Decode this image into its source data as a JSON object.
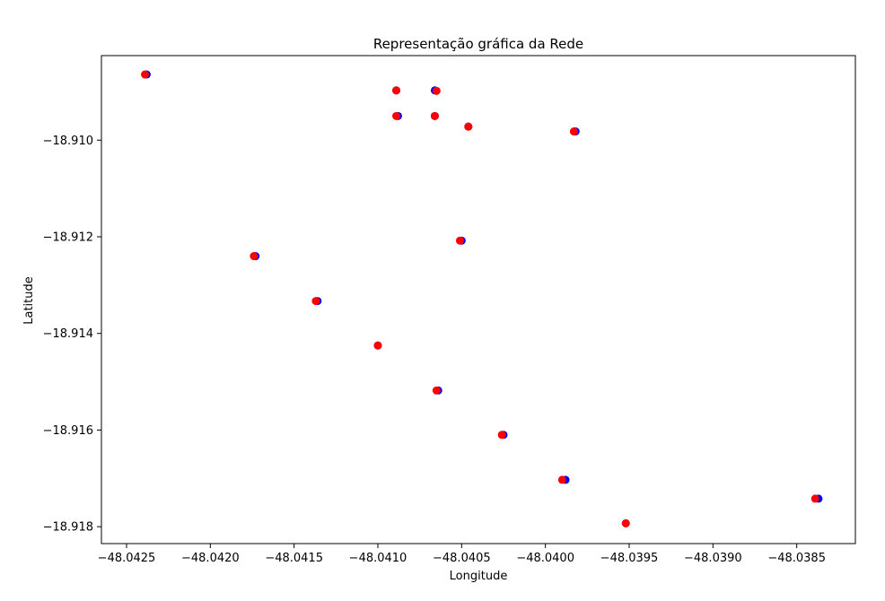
{
  "chart_data": {
    "type": "scatter",
    "title": "Representação gráfica da Rede",
    "xlabel": "Longitude",
    "ylabel": "Latitude",
    "xlim": [
      -48.04265,
      -48.03815
    ],
    "ylim": [
      -18.91835,
      -18.90825
    ],
    "xticks": [
      -48.0425,
      -48.042,
      -48.0415,
      -48.041,
      -48.0405,
      -48.04,
      -48.0395,
      -48.039,
      -48.0385
    ],
    "xtick_labels": [
      "−48.0425",
      "−48.0420",
      "−48.0415",
      "−48.0410",
      "−48.0405",
      "−48.0400",
      "−48.0395",
      "−48.0390",
      "−48.0385"
    ],
    "yticks": [
      -18.91,
      -18.912,
      -18.914,
      -18.916,
      -18.918
    ],
    "ytick_labels": [
      "−18.910",
      "−18.912",
      "−18.914",
      "−18.916",
      "−18.918"
    ],
    "grid": false,
    "series": [
      {
        "color": "#0000ff",
        "marker": "circle",
        "points": [
          [
            -48.04238,
            -18.90864
          ],
          [
            -48.04089,
            -18.90897
          ],
          [
            -48.04066,
            -18.90897
          ],
          [
            -48.04088,
            -18.9095
          ],
          [
            -48.04066,
            -18.9095
          ],
          [
            -48.04046,
            -18.90972
          ],
          [
            -48.03982,
            -18.90982
          ],
          [
            -48.0405,
            -18.91208
          ],
          [
            -48.04173,
            -18.9124
          ],
          [
            -48.04136,
            -18.91333
          ],
          [
            -48.041,
            -18.91425
          ],
          [
            -48.04064,
            -18.91518
          ],
          [
            -48.04025,
            -18.9161
          ],
          [
            -48.03988,
            -18.91703
          ],
          [
            -48.03952,
            -18.91793
          ],
          [
            -48.03837,
            -18.91742
          ]
        ]
      },
      {
        "color": "#ff0000",
        "marker": "circle",
        "points": [
          [
            -48.04239,
            -18.90864
          ],
          [
            -48.04089,
            -18.90897
          ],
          [
            -48.04065,
            -18.90898
          ],
          [
            -48.04089,
            -18.9095
          ],
          [
            -48.04066,
            -18.9095
          ],
          [
            -48.04046,
            -18.90972
          ],
          [
            -48.03983,
            -18.90982
          ],
          [
            -48.04051,
            -18.91208
          ],
          [
            -48.04174,
            -18.9124
          ],
          [
            -48.04137,
            -18.91333
          ],
          [
            -48.041,
            -18.91425
          ],
          [
            -48.04065,
            -18.91518
          ],
          [
            -48.04026,
            -18.9161
          ],
          [
            -48.0399,
            -18.91703
          ],
          [
            -48.03952,
            -18.91793
          ],
          [
            -48.03839,
            -18.91742
          ]
        ]
      }
    ]
  }
}
